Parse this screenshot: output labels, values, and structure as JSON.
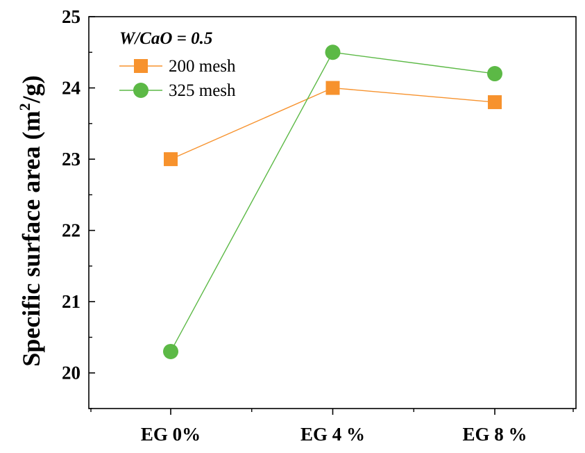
{
  "chart_data": {
    "type": "line",
    "categories": [
      "EG 0%",
      "EG 4 %",
      "EG 8 %"
    ],
    "series": [
      {
        "name": "200 mesh",
        "values": [
          23.0,
          24.0,
          23.8
        ],
        "color": "#f7922d",
        "marker": "square"
      },
      {
        "name": "325 mesh",
        "values": [
          20.3,
          24.5,
          24.2
        ],
        "color": "#5cb946",
        "marker": "circle"
      }
    ],
    "ylabel_main": "Specific surface area (m",
    "ylabel_sup": "2",
    "ylabel_end": "/g)",
    "ylim": [
      19.5,
      25
    ],
    "yticks": [
      "20",
      "21",
      "22",
      "23",
      "24",
      "25"
    ],
    "legend_title": "W/CaO = 0.5",
    "legend_position": "top-left",
    "grid": false
  }
}
